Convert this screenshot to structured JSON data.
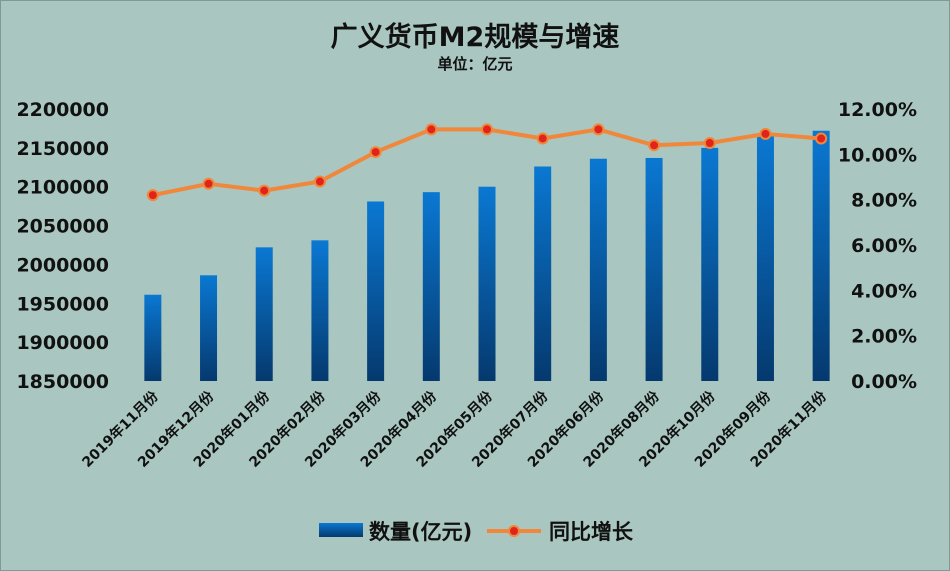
{
  "chart_data": {
    "type": "bar",
    "title": "广义货币M2规模与增速",
    "subtitle": "单位：亿元",
    "categories": [
      "2019年11月份",
      "2019年12月份",
      "2020年01月份",
      "2020年02月份",
      "2020年03月份",
      "2020年04月份",
      "2020年05月份",
      "2020年07月份",
      "2020年06月份",
      "2020年08月份",
      "2020年10月份",
      "2020年09月份",
      "2020年11月份"
    ],
    "series": [
      {
        "name": "数量(亿元)",
        "type": "bar",
        "axis": "left",
        "color": "#0a6fc2",
        "values": [
          1961000,
          1986000,
          2022000,
          2031000,
          2081000,
          2093000,
          2100000,
          2126000,
          2136000,
          2137000,
          2150000,
          2165000,
          2172000
        ]
      },
      {
        "name": "同比增长",
        "type": "line",
        "axis": "right",
        "color": "#f0873a",
        "marker_color": "#e0241b",
        "values": [
          8.2,
          8.7,
          8.4,
          8.8,
          10.1,
          11.1,
          11.1,
          10.7,
          11.1,
          10.4,
          10.5,
          10.9,
          10.7
        ]
      }
    ],
    "y_left": {
      "min": 1850000,
      "max": 2200000,
      "ticks": [
        1850000,
        1900000,
        1950000,
        2000000,
        2050000,
        2100000,
        2150000,
        2200000
      ],
      "tick_labels": [
        "1850000",
        "1900000",
        "1950000",
        "2000000",
        "2050000",
        "2100000",
        "2150000",
        "2200000"
      ]
    },
    "y_right": {
      "min": 0,
      "max": 12,
      "ticks": [
        0,
        2,
        4,
        6,
        8,
        10,
        12
      ],
      "tick_labels": [
        "0.00%",
        "2.00%",
        "4.00%",
        "6.00%",
        "8.00%",
        "10.00%",
        "12.00%"
      ]
    },
    "grid": false,
    "legend": "bottom"
  }
}
